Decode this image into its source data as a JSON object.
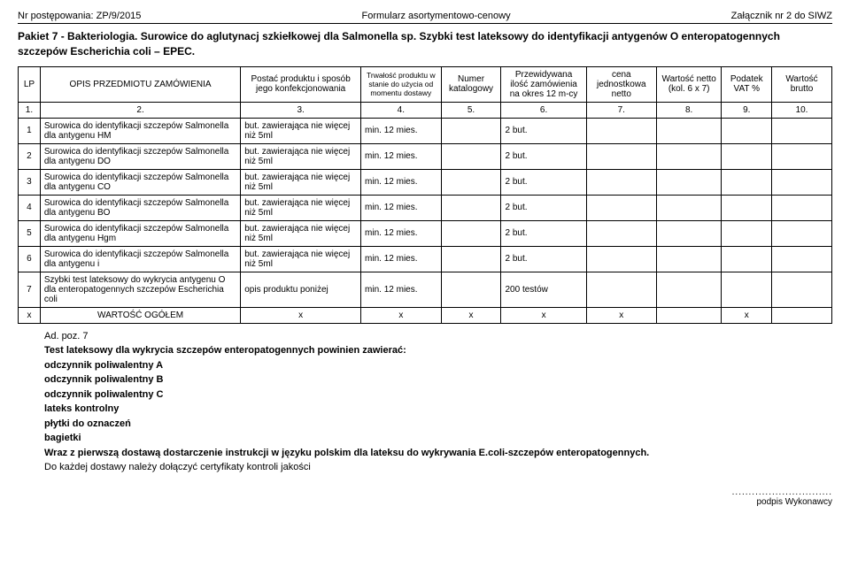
{
  "header": {
    "left": "Nr postępowania: ZP/9/2015",
    "center": "Formularz asortymentowo-cenowy",
    "right": "Załącznik nr 2 do SIWZ"
  },
  "title": "Pakiet 7 - Bakteriologia. Surowice do aglutynacj szkiełkowej dla Salmonella sp. Szybki test lateksowy do identyfikacji antygenów O enteropatogennych szczepów Escherichia coli – EPEC.",
  "columns": {
    "lp": "LP",
    "opis": "OPIS PRZEDMIOTU ZAMÓWIENIA",
    "postac": "Postać produktu i sposób jego konfekcjonowania",
    "trwalosc": "Trwałość produktu w stanie do użycia od momentu dostawy",
    "numer": "Numer katalogowy",
    "przewidywana": "Przewidywana ilość zamówienia na okres 12 m-cy",
    "cena": "cena jednostkowa netto",
    "wartosc_netto": "Wartość netto (kol. 6 x 7)",
    "podatek": "Podatek VAT %",
    "wartosc_brutto": "Wartość brutto"
  },
  "num_row": [
    "1.",
    "2.",
    "3.",
    "4.",
    "5.",
    "6.",
    "7.",
    "8.",
    "9.",
    "10."
  ],
  "rows": [
    {
      "lp": "1",
      "opis": "Surowica do identyfikacji szczepów Salmonella dla antygenu HM",
      "postac": "but. zawierająca nie więcej niż 5ml",
      "trwalosc": "min. 12 mies.",
      "przew": "2 but."
    },
    {
      "lp": "2",
      "opis": "Surowica do identyfikacji szczepów Salmonella dla antygenu DO",
      "postac": "but. zawierająca nie więcej niż 5ml",
      "trwalosc": "min. 12 mies.",
      "przew": "2 but."
    },
    {
      "lp": "3",
      "opis": "Surowica do identyfikacji szczepów Salmonella dla antygenu CO",
      "postac": "but. zawierająca nie więcej niż 5ml",
      "trwalosc": "min. 12 mies.",
      "przew": "2 but."
    },
    {
      "lp": "4",
      "opis": "Surowica do identyfikacji szczepów Salmonella dla antygenu BO",
      "postac": "but. zawierająca nie więcej niż 5ml",
      "trwalosc": "min. 12 mies.",
      "przew": "2 but."
    },
    {
      "lp": "5",
      "opis": "Surowica do identyfikacji szczepów Salmonella dla antygenu Hgm",
      "postac": "but. zawierająca nie więcej niż 5ml",
      "trwalosc": "min. 12 mies.",
      "przew": "2 but."
    },
    {
      "lp": "6",
      "opis": "Surowica do identyfikacji szczepów Salmonella dla antygenu i",
      "postac": "but. zawierająca nie więcej niż 5ml",
      "trwalosc": "min. 12 mies.",
      "przew": "2 but."
    },
    {
      "lp": "7",
      "opis": "Szybki test lateksowy do wykrycia antygenu O dla enteropatogennych szczepów Escherichia coli",
      "postac": "opis produktu poniżej",
      "trwalosc": "min. 12 mies.",
      "przew": "200 testów"
    }
  ],
  "total_row": {
    "lp": "x",
    "label": "WARTOŚĆ OGÓŁEM",
    "x": "x"
  },
  "footer": {
    "l1": "Ad. poz. 7",
    "l2": "Test lateksowy dla wykrycia szczepów enteropatogennych powinien zawierać:",
    "l3": "odczynnik poliwalentny A",
    "l4": "odczynnik poliwalentny B",
    "l5": "odczynnik poliwalentny C",
    "l6": "lateks kontrolny",
    "l7": "płytki do oznaczeń",
    "l8": "bagietki",
    "l9a": "Wraz z pierwszą dostawą dostarczenie instrukcji w języku polskim dla lateksu do wykrywania E.coli-szczepów enteropatogennych.",
    "l10": "Do każdej dostawy należy dołączyć certyfikaty kontroli jakości"
  },
  "signature": {
    "dots": "..............................",
    "label": "podpis Wykonawcy"
  }
}
